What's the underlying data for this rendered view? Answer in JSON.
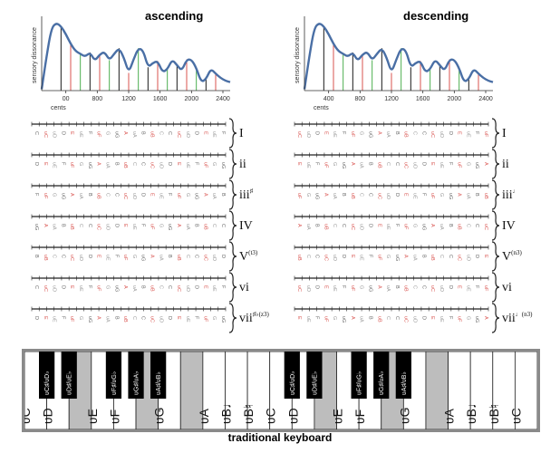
{
  "panels": [
    {
      "id": "ascending",
      "title": "ascending"
    },
    {
      "id": "descending",
      "title": "descending"
    }
  ],
  "axis": {
    "ylabel": "sensory dissonance",
    "xlabel": "cents",
    "ascending_ticks": [
      "00",
      "800",
      "1200",
      "1600",
      "2000",
      "2400"
    ],
    "descending_ticks": [
      "400",
      "800",
      "1200",
      "1600",
      "2000",
      "2400"
    ]
  },
  "curve_values": [
    2,
    48,
    88,
    96,
    91,
    80,
    66,
    56,
    52,
    48,
    54,
    42,
    51,
    55,
    43,
    52,
    60,
    47,
    25,
    44,
    60,
    57,
    33,
    39,
    42,
    26,
    30,
    44,
    36,
    28,
    44,
    44,
    32,
    12,
    16,
    31,
    24,
    18,
    14,
    12
  ],
  "marker_colors": [
    "#d9534f",
    "#4caf50",
    "#1a1a1a"
  ],
  "scales": [
    {
      "asc": "I",
      "asc_sup": "",
      "desc": "I",
      "desc_sup": ""
    },
    {
      "asc": "ii",
      "asc_sup": "",
      "desc": "ii",
      "desc_sup": ""
    },
    {
      "asc": "iii",
      "asc_sup": "♯",
      "desc": "iii",
      "desc_sup": "♩"
    },
    {
      "asc": "IV",
      "asc_sup": "",
      "desc": "IV",
      "desc_sup": ""
    },
    {
      "asc": "V",
      "asc_sup": "(t3)",
      "desc": "V",
      "desc_sup": "(n3)"
    },
    {
      "asc": "vi",
      "asc_sup": "",
      "desc": "vi",
      "desc_sup": ""
    },
    {
      "asc": "vii",
      "asc_sup": "♯♭(z3)",
      "desc": "vii",
      "desc_sup": "♩(n3)"
    }
  ],
  "scale_notes": [
    "C",
    "ʋC",
    "ʋD",
    "D",
    "E",
    "ʋE",
    "F",
    "ʋF",
    "G",
    "ʋG",
    "A",
    "ʋA",
    "B",
    "ʋB",
    "C"
  ],
  "keyboard": {
    "caption": "traditional keyboard",
    "white_keys": [
      {
        "label": "ʋC",
        "big": true
      },
      {
        "label": "ʋD",
        "big": true
      },
      {
        "label": "",
        "big": false
      },
      {
        "label": "ʋE",
        "big": true
      },
      {
        "label": "ʋF",
        "big": true
      },
      {
        "label": "",
        "big": false
      },
      {
        "label": "ʋG",
        "big": true
      },
      {
        "label": "",
        "big": false
      },
      {
        "label": "ʋA",
        "big": true
      },
      {
        "label": "ʋB♩",
        "big": true
      },
      {
        "label": "ʋB♮",
        "big": true
      },
      {
        "label": "ʋC",
        "big": true
      },
      {
        "label": "ʋD",
        "big": true
      },
      {
        "label": "",
        "big": false
      },
      {
        "label": "ʋE",
        "big": true
      },
      {
        "label": "ʋF",
        "big": true
      },
      {
        "label": "",
        "big": false
      },
      {
        "label": "ʋG",
        "big": true
      },
      {
        "label": "",
        "big": false
      },
      {
        "label": "ʋA",
        "big": true
      },
      {
        "label": "ʋB♩",
        "big": true
      },
      {
        "label": "ʋB♮",
        "big": true
      },
      {
        "label": "ʋC",
        "big": true
      }
    ],
    "black_keys": [
      {
        "label": "ʋC♯/ʋD♭"
      },
      {
        "label": "ʋD♯/ʋE♭"
      },
      {
        "label": "ʋF♯/ʋG♭"
      },
      {
        "label": "ʋG♯/ʋA♭"
      },
      {
        "label": "ʋA♯/ʋB♭"
      },
      {
        "label": "ʋC♯/ʋD♭"
      },
      {
        "label": "ʋD♯/ʋE♭"
      },
      {
        "label": "ʋF♯/ʋG♭"
      },
      {
        "label": "ʋG♯/ʋA♭"
      },
      {
        "label": "ʋA♯/ʋB♭"
      }
    ]
  }
}
